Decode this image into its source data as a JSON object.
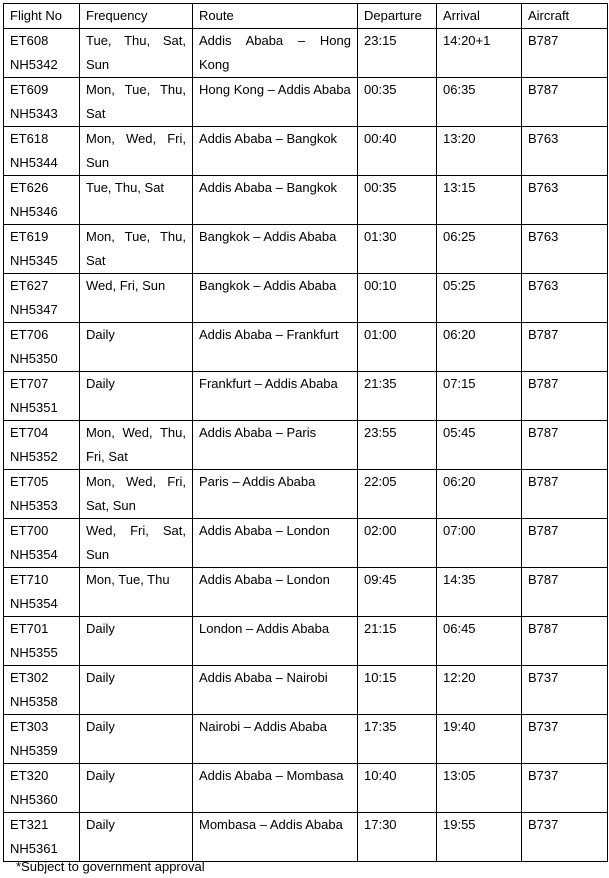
{
  "headers": [
    "Flight No",
    "Frequency",
    "Route",
    "Departure",
    "Arrival",
    "Aircraft"
  ],
  "rows": [
    {
      "flight": "ET608 NH5342",
      "frequency": "Tue, Thu, Sat, Sun",
      "route": "Addis Ababa – Hong Kong",
      "departure": "23:15",
      "arrival": "14:20+1",
      "aircraft": "B787"
    },
    {
      "flight": "ET609 NH5343",
      "frequency": "Mon, Tue, Thu, Sat",
      "route": "Hong Kong – Addis Ababa",
      "departure": "00:35",
      "arrival": "06:35",
      "aircraft": "B787"
    },
    {
      "flight": "ET618 NH5344",
      "frequency": "Mon, Wed, Fri, Sun",
      "route": "Addis Ababa – Bangkok",
      "departure": "00:40",
      "arrival": "13:20",
      "aircraft": "B763"
    },
    {
      "flight": "ET626 NH5346",
      "frequency": "Tue, Thu, Sat",
      "route": "Addis Ababa – Bangkok",
      "departure": "00:35",
      "arrival": "13:15",
      "aircraft": "B763"
    },
    {
      "flight": "ET619 NH5345",
      "frequency": "Mon, Tue, Thu, Sat",
      "route": "Bangkok – Addis Ababa",
      "departure": "01:30",
      "arrival": "06:25",
      "aircraft": "B763"
    },
    {
      "flight": "ET627 NH5347",
      "frequency": "Wed, Fri, Sun",
      "route": "Bangkok – Addis Ababa",
      "departure": "00:10",
      "arrival": "05:25",
      "aircraft": "B763"
    },
    {
      "flight": "ET706 NH5350",
      "frequency": "Daily",
      "route": "Addis Ababa – Frankfurt",
      "departure": "01:00",
      "arrival": "06:20",
      "aircraft": "B787"
    },
    {
      "flight": "ET707 NH5351",
      "frequency": "Daily",
      "route": "Frankfurt – Addis Ababa",
      "departure": "21:35",
      "arrival": "07:15",
      "aircraft": "B787"
    },
    {
      "flight": "ET704 NH5352",
      "frequency": "Mon, Wed, Thu, Fri, Sat",
      "route": "Addis Ababa – Paris",
      "departure": "23:55",
      "arrival": "05:45",
      "aircraft": "B787"
    },
    {
      "flight": "ET705 NH5353",
      "frequency": "Mon, Wed, Fri, Sat, Sun",
      "route": "Paris – Addis Ababa",
      "departure": "22:05",
      "arrival": "06:20",
      "aircraft": "B787"
    },
    {
      "flight": "ET700 NH5354",
      "frequency": "Wed, Fri, Sat, Sun",
      "route": "Addis Ababa – London",
      "departure": "02:00",
      "arrival": "07:00",
      "aircraft": "B787"
    },
    {
      "flight": "ET710 NH5354",
      "frequency": "Mon, Tue, Thu",
      "route": "Addis Ababa – London",
      "departure": "09:45",
      "arrival": "14:35",
      "aircraft": "B787"
    },
    {
      "flight": "ET701 NH5355",
      "frequency": "Daily",
      "route": "London – Addis Ababa",
      "departure": "21:15",
      "arrival": "06:45",
      "aircraft": "B787"
    },
    {
      "flight": "ET302 NH5358",
      "frequency": "Daily",
      "route": "Addis Ababa – Nairobi",
      "departure": "10:15",
      "arrival": "12:20",
      "aircraft": "B737"
    },
    {
      "flight": "ET303 NH5359",
      "frequency": "Daily",
      "route": "Nairobi – Addis Ababa",
      "departure": "17:35",
      "arrival": "19:40",
      "aircraft": "B737"
    },
    {
      "flight": "ET320 NH5360",
      "frequency": "Daily",
      "route": "Addis Ababa – Mombasa",
      "departure": "10:40",
      "arrival": "13:05",
      "aircraft": "B737"
    },
    {
      "flight": "ET321 NH5361",
      "frequency": "Daily",
      "route": "Mombasa – Addis Ababa",
      "departure": "17:30",
      "arrival": "19:55",
      "aircraft": "B737"
    }
  ],
  "footnote": "*Subject to government approval"
}
